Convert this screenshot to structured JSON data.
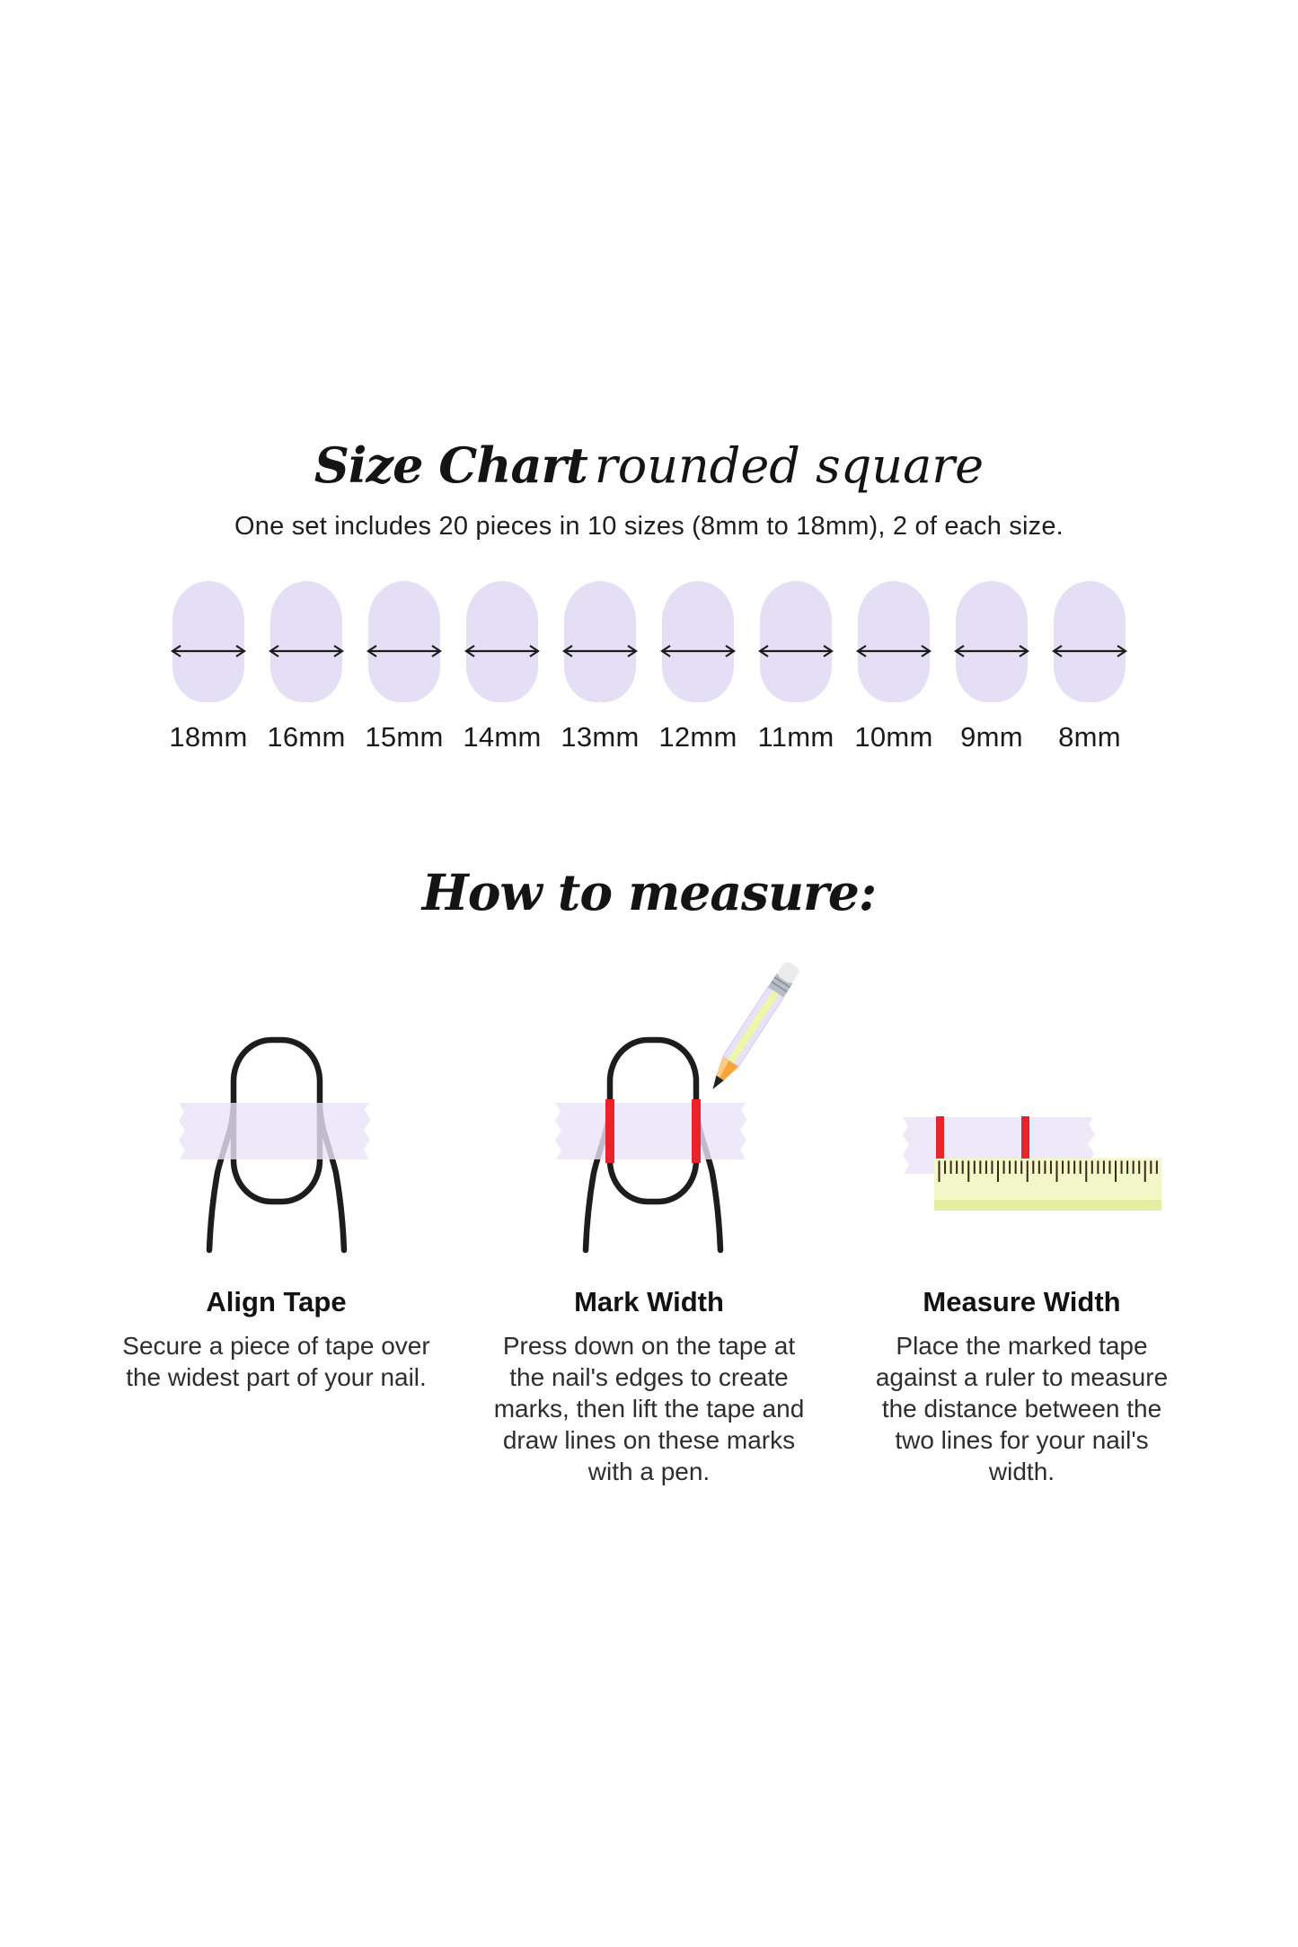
{
  "page": {
    "background": "#ffffff"
  },
  "size_chart": {
    "title_main": "Size Chart",
    "title_variant": "rounded square",
    "subtitle": "One set includes 20 pieces in 10 sizes (8mm to 18mm), 2 of each size.",
    "sizes": [
      "18mm",
      "16mm",
      "15mm",
      "14mm",
      "13mm",
      "12mm",
      "11mm",
      "10mm",
      "9mm",
      "8mm"
    ],
    "colors": {
      "nail_swatch": "#e5dff5",
      "arrow": "#1c1c1c"
    }
  },
  "how_to_measure": {
    "heading": "How to measure:",
    "steps": [
      {
        "title": "Align Tape",
        "description": "Secure a piece of tape over the widest part of your nail.",
        "icon": "nail-with-tape-icon"
      },
      {
        "title": "Mark Width",
        "description": "Press down on the tape at the nail's edges to create marks, then lift the tape and draw lines on these marks with a pen.",
        "icon": "nail-with-marked-tape-and-pencil-icon"
      },
      {
        "title": "Measure Width",
        "description": "Place the marked tape against a ruler to measure the distance between the two lines for your nail's width.",
        "icon": "marked-tape-on-ruler-icon"
      }
    ],
    "colors": {
      "tape": "#e8e4f7",
      "mark": "#e8232b",
      "outline": "#1d1d1d",
      "ruler_body": "#f2f7c7",
      "ruler_edge": "#e3eea2",
      "ruler_tick": "#38261b"
    }
  }
}
